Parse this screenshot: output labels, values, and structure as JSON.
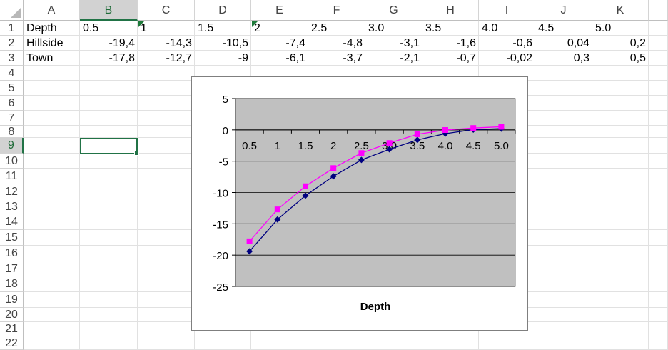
{
  "sheet": {
    "columns": [
      "A",
      "B",
      "C",
      "D",
      "E",
      "F",
      "G",
      "H",
      "I",
      "J",
      "K"
    ],
    "selected_column": "B",
    "selected_row": "9",
    "row_numbers": [
      "1",
      "2",
      "3",
      "4",
      "5",
      "6",
      "7",
      "8",
      "9",
      "10",
      "11",
      "12",
      "13",
      "14",
      "15",
      "16",
      "17",
      "18",
      "19",
      "20",
      "21",
      "22"
    ],
    "rows": [
      {
        "label": "Depth",
        "values": [
          "0.5",
          "1",
          "1.5",
          "2",
          "2.5",
          "3.0",
          "3.5",
          "4.0",
          "4.5",
          "5.0"
        ]
      },
      {
        "label": "Hillside",
        "values": [
          "-19,4",
          "-14,3",
          "-10,5",
          "-7,4",
          "-4,8",
          "-3,1",
          "-1,6",
          "-0,6",
          "0,04",
          "0,2"
        ]
      },
      {
        "label": "Town",
        "values": [
          "-17,8",
          "-12,7",
          "-9",
          "-6,1",
          "-3,7",
          "-2,1",
          "-0,7",
          "-0,02",
          "0,3",
          "0,5"
        ]
      }
    ]
  },
  "chart_data": {
    "type": "line",
    "categories": [
      "0.5",
      "1",
      "1.5",
      "2",
      "2.5",
      "3.0",
      "3.5",
      "4.0",
      "4.5",
      "5.0"
    ],
    "series": [
      {
        "values": [
          -19.4,
          -14.3,
          -10.5,
          -7.4,
          -4.8,
          -3.1,
          -1.6,
          -0.6,
          0.04,
          0.2
        ],
        "color": "#000080",
        "marker": "diamond"
      },
      {
        "values": [
          -17.8,
          -12.7,
          -9,
          -6.1,
          -3.7,
          -2.1,
          -0.7,
          -0.02,
          0.3,
          0.5
        ],
        "color": "#ff00ff",
        "marker": "square"
      }
    ],
    "xlabel": "Depth",
    "ylabel": "",
    "ylim": [
      -25,
      5
    ],
    "yticks": [
      "5",
      "0",
      "-5",
      "-10",
      "-15",
      "-20",
      "-25"
    ],
    "grid": true,
    "legend": "none",
    "plot_background": "#c0c0c0"
  }
}
